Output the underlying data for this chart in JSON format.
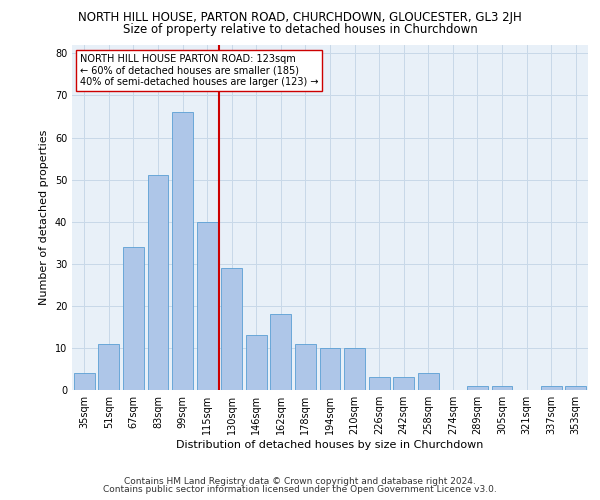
{
  "title": "NORTH HILL HOUSE, PARTON ROAD, CHURCHDOWN, GLOUCESTER, GL3 2JH",
  "subtitle": "Size of property relative to detached houses in Churchdown",
  "xlabel": "Distribution of detached houses by size in Churchdown",
  "ylabel": "Number of detached properties",
  "categories": [
    "35sqm",
    "51sqm",
    "67sqm",
    "83sqm",
    "99sqm",
    "115sqm",
    "130sqm",
    "146sqm",
    "162sqm",
    "178sqm",
    "194sqm",
    "210sqm",
    "226sqm",
    "242sqm",
    "258sqm",
    "274sqm",
    "289sqm",
    "305sqm",
    "321sqm",
    "337sqm",
    "353sqm"
  ],
  "values": [
    4,
    11,
    34,
    51,
    66,
    40,
    29,
    13,
    18,
    11,
    10,
    10,
    3,
    3,
    4,
    0,
    1,
    1,
    0,
    1,
    1
  ],
  "bar_color": "#aec6e8",
  "bar_edge_color": "#5a9fd4",
  "vline_x": 5.5,
  "vline_color": "#cc0000",
  "annotation_line1": "NORTH HILL HOUSE PARTON ROAD: 123sqm",
  "annotation_line2": "← 60% of detached houses are smaller (185)",
  "annotation_line3": "40% of semi-detached houses are larger (123) →",
  "annotation_box_color": "#ffffff",
  "annotation_box_edge": "#cc0000",
  "ylim": [
    0,
    82
  ],
  "yticks": [
    0,
    10,
    20,
    30,
    40,
    50,
    60,
    70,
    80
  ],
  "grid_color": "#c8d8e8",
  "background_color": "#e8f0f8",
  "footer1": "Contains HM Land Registry data © Crown copyright and database right 2024.",
  "footer2": "Contains public sector information licensed under the Open Government Licence v3.0.",
  "title_fontsize": 8.5,
  "subtitle_fontsize": 8.5,
  "xlabel_fontsize": 8,
  "ylabel_fontsize": 8,
  "tick_fontsize": 7,
  "annotation_fontsize": 7,
  "footer_fontsize": 6.5
}
